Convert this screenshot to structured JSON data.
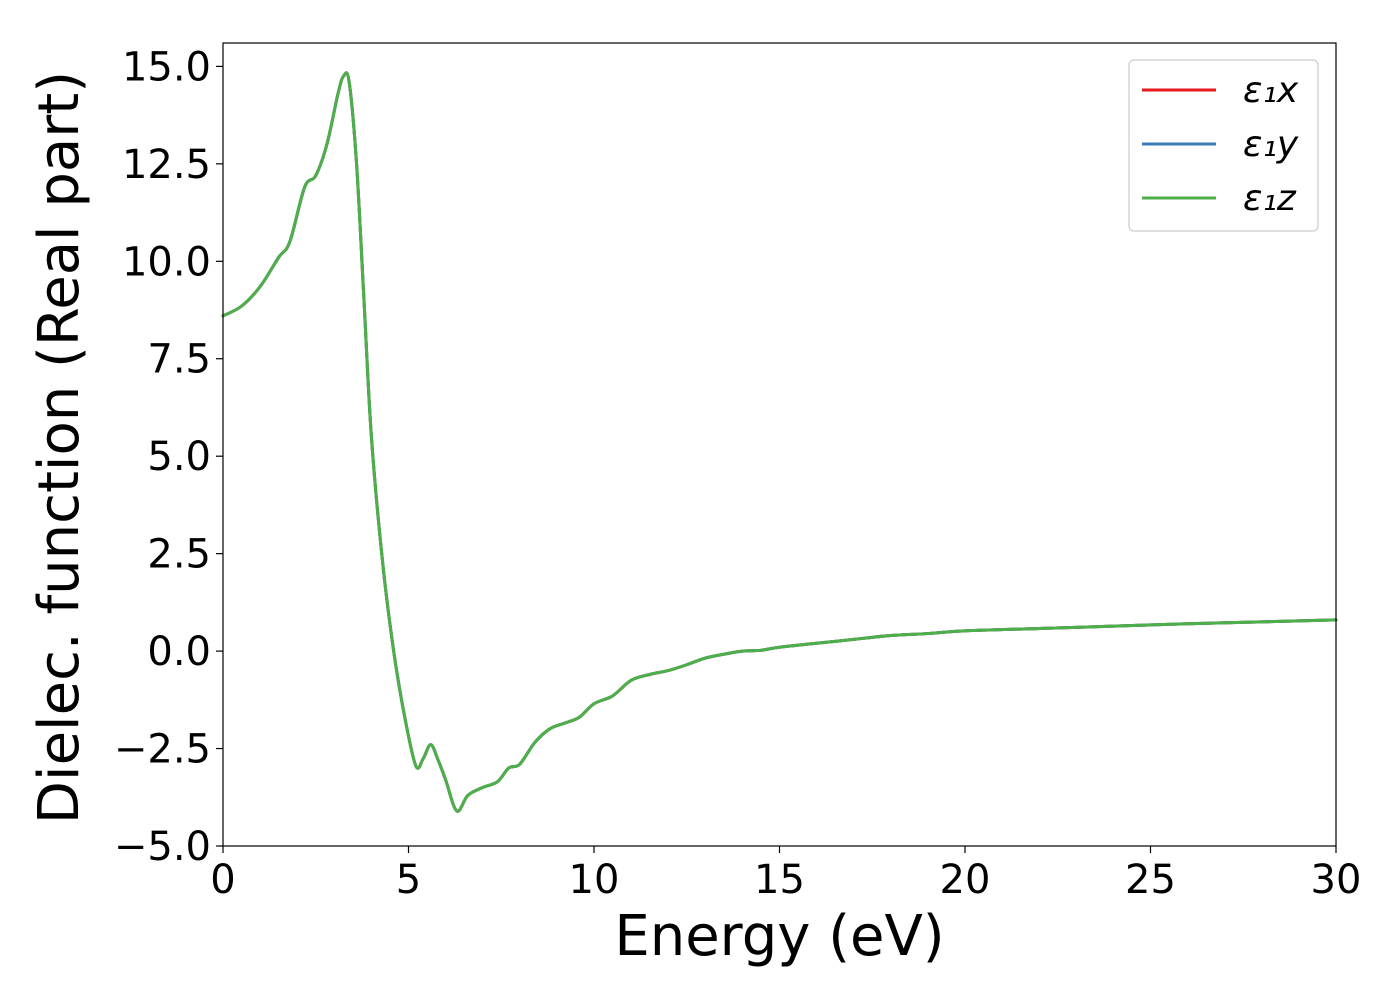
{
  "chart_data": {
    "type": "line",
    "xlabel": "Energy (eV)",
    "ylabel": "Dielec. function (Real part)",
    "xlim": [
      0,
      30
    ],
    "ylim": [
      -5.0,
      15.6
    ],
    "xticks": [
      0,
      5,
      10,
      15,
      20,
      25,
      30
    ],
    "xtick_labels": [
      "0",
      "5",
      "10",
      "15",
      "20",
      "25",
      "30"
    ],
    "yticks": [
      -5.0,
      -2.5,
      0.0,
      2.5,
      5.0,
      7.5,
      10.0,
      12.5,
      15.0
    ],
    "ytick_labels": [
      "−5.0",
      "−2.5",
      "0.0",
      "2.5",
      "5.0",
      "7.5",
      "10.0",
      "12.5",
      "15.0"
    ],
    "grid": false,
    "legend_position": "top-right",
    "x": [
      0,
      0.5,
      1.0,
      1.5,
      1.8,
      2.2,
      2.5,
      2.8,
      3.1,
      3.25,
      3.4,
      3.6,
      3.8,
      4.0,
      4.3,
      4.6,
      4.9,
      5.2,
      5.4,
      5.6,
      5.8,
      6.0,
      6.3,
      6.6,
      7.0,
      7.4,
      7.7,
      8.0,
      8.4,
      8.8,
      9.2,
      9.6,
      10.0,
      10.5,
      11.0,
      11.5,
      12.0,
      12.5,
      13.0,
      13.5,
      14.0,
      14.5,
      15.0,
      16.0,
      17.0,
      18.0,
      19.0,
      20.0,
      22.0,
      24.0,
      26.0,
      28.0,
      30.0
    ],
    "series": [
      {
        "name": "ε₁x",
        "color": "#e41a1c",
        "y": [
          8.6,
          8.85,
          9.35,
          10.1,
          10.5,
          11.9,
          12.2,
          13.0,
          14.3,
          14.75,
          14.6,
          12.5,
          9.0,
          5.5,
          2.3,
          0.0,
          -1.7,
          -2.95,
          -2.75,
          -2.4,
          -2.8,
          -3.3,
          -4.1,
          -3.7,
          -3.5,
          -3.35,
          -3.0,
          -2.9,
          -2.35,
          -2.0,
          -1.85,
          -1.7,
          -1.35,
          -1.15,
          -0.75,
          -0.6,
          -0.5,
          -0.35,
          -0.18,
          -0.08,
          0.0,
          0.02,
          0.1,
          0.2,
          0.3,
          0.4,
          0.45,
          0.52,
          0.58,
          0.64,
          0.7,
          0.75,
          0.8
        ]
      },
      {
        "name": "ε₁y",
        "color": "#377eb8",
        "y": [
          8.6,
          8.85,
          9.35,
          10.1,
          10.5,
          11.9,
          12.2,
          13.0,
          14.3,
          14.75,
          14.6,
          12.5,
          9.0,
          5.5,
          2.3,
          0.0,
          -1.7,
          -2.95,
          -2.75,
          -2.4,
          -2.8,
          -3.3,
          -4.1,
          -3.7,
          -3.5,
          -3.35,
          -3.0,
          -2.9,
          -2.35,
          -2.0,
          -1.85,
          -1.7,
          -1.35,
          -1.15,
          -0.75,
          -0.6,
          -0.5,
          -0.35,
          -0.18,
          -0.08,
          0.0,
          0.02,
          0.1,
          0.2,
          0.3,
          0.4,
          0.45,
          0.52,
          0.58,
          0.64,
          0.7,
          0.75,
          0.8
        ]
      },
      {
        "name": "ε₁z",
        "color": "#4daf4a",
        "y": [
          8.6,
          8.85,
          9.35,
          10.1,
          10.5,
          11.9,
          12.2,
          13.0,
          14.3,
          14.75,
          14.6,
          12.5,
          9.0,
          5.5,
          2.3,
          0.0,
          -1.7,
          -2.95,
          -2.75,
          -2.4,
          -2.8,
          -3.3,
          -4.1,
          -3.7,
          -3.5,
          -3.35,
          -3.0,
          -2.9,
          -2.35,
          -2.0,
          -1.85,
          -1.7,
          -1.35,
          -1.15,
          -0.75,
          -0.6,
          -0.5,
          -0.35,
          -0.18,
          -0.08,
          0.0,
          0.02,
          0.1,
          0.2,
          0.3,
          0.4,
          0.45,
          0.52,
          0.58,
          0.64,
          0.7,
          0.75,
          0.8
        ]
      }
    ]
  }
}
